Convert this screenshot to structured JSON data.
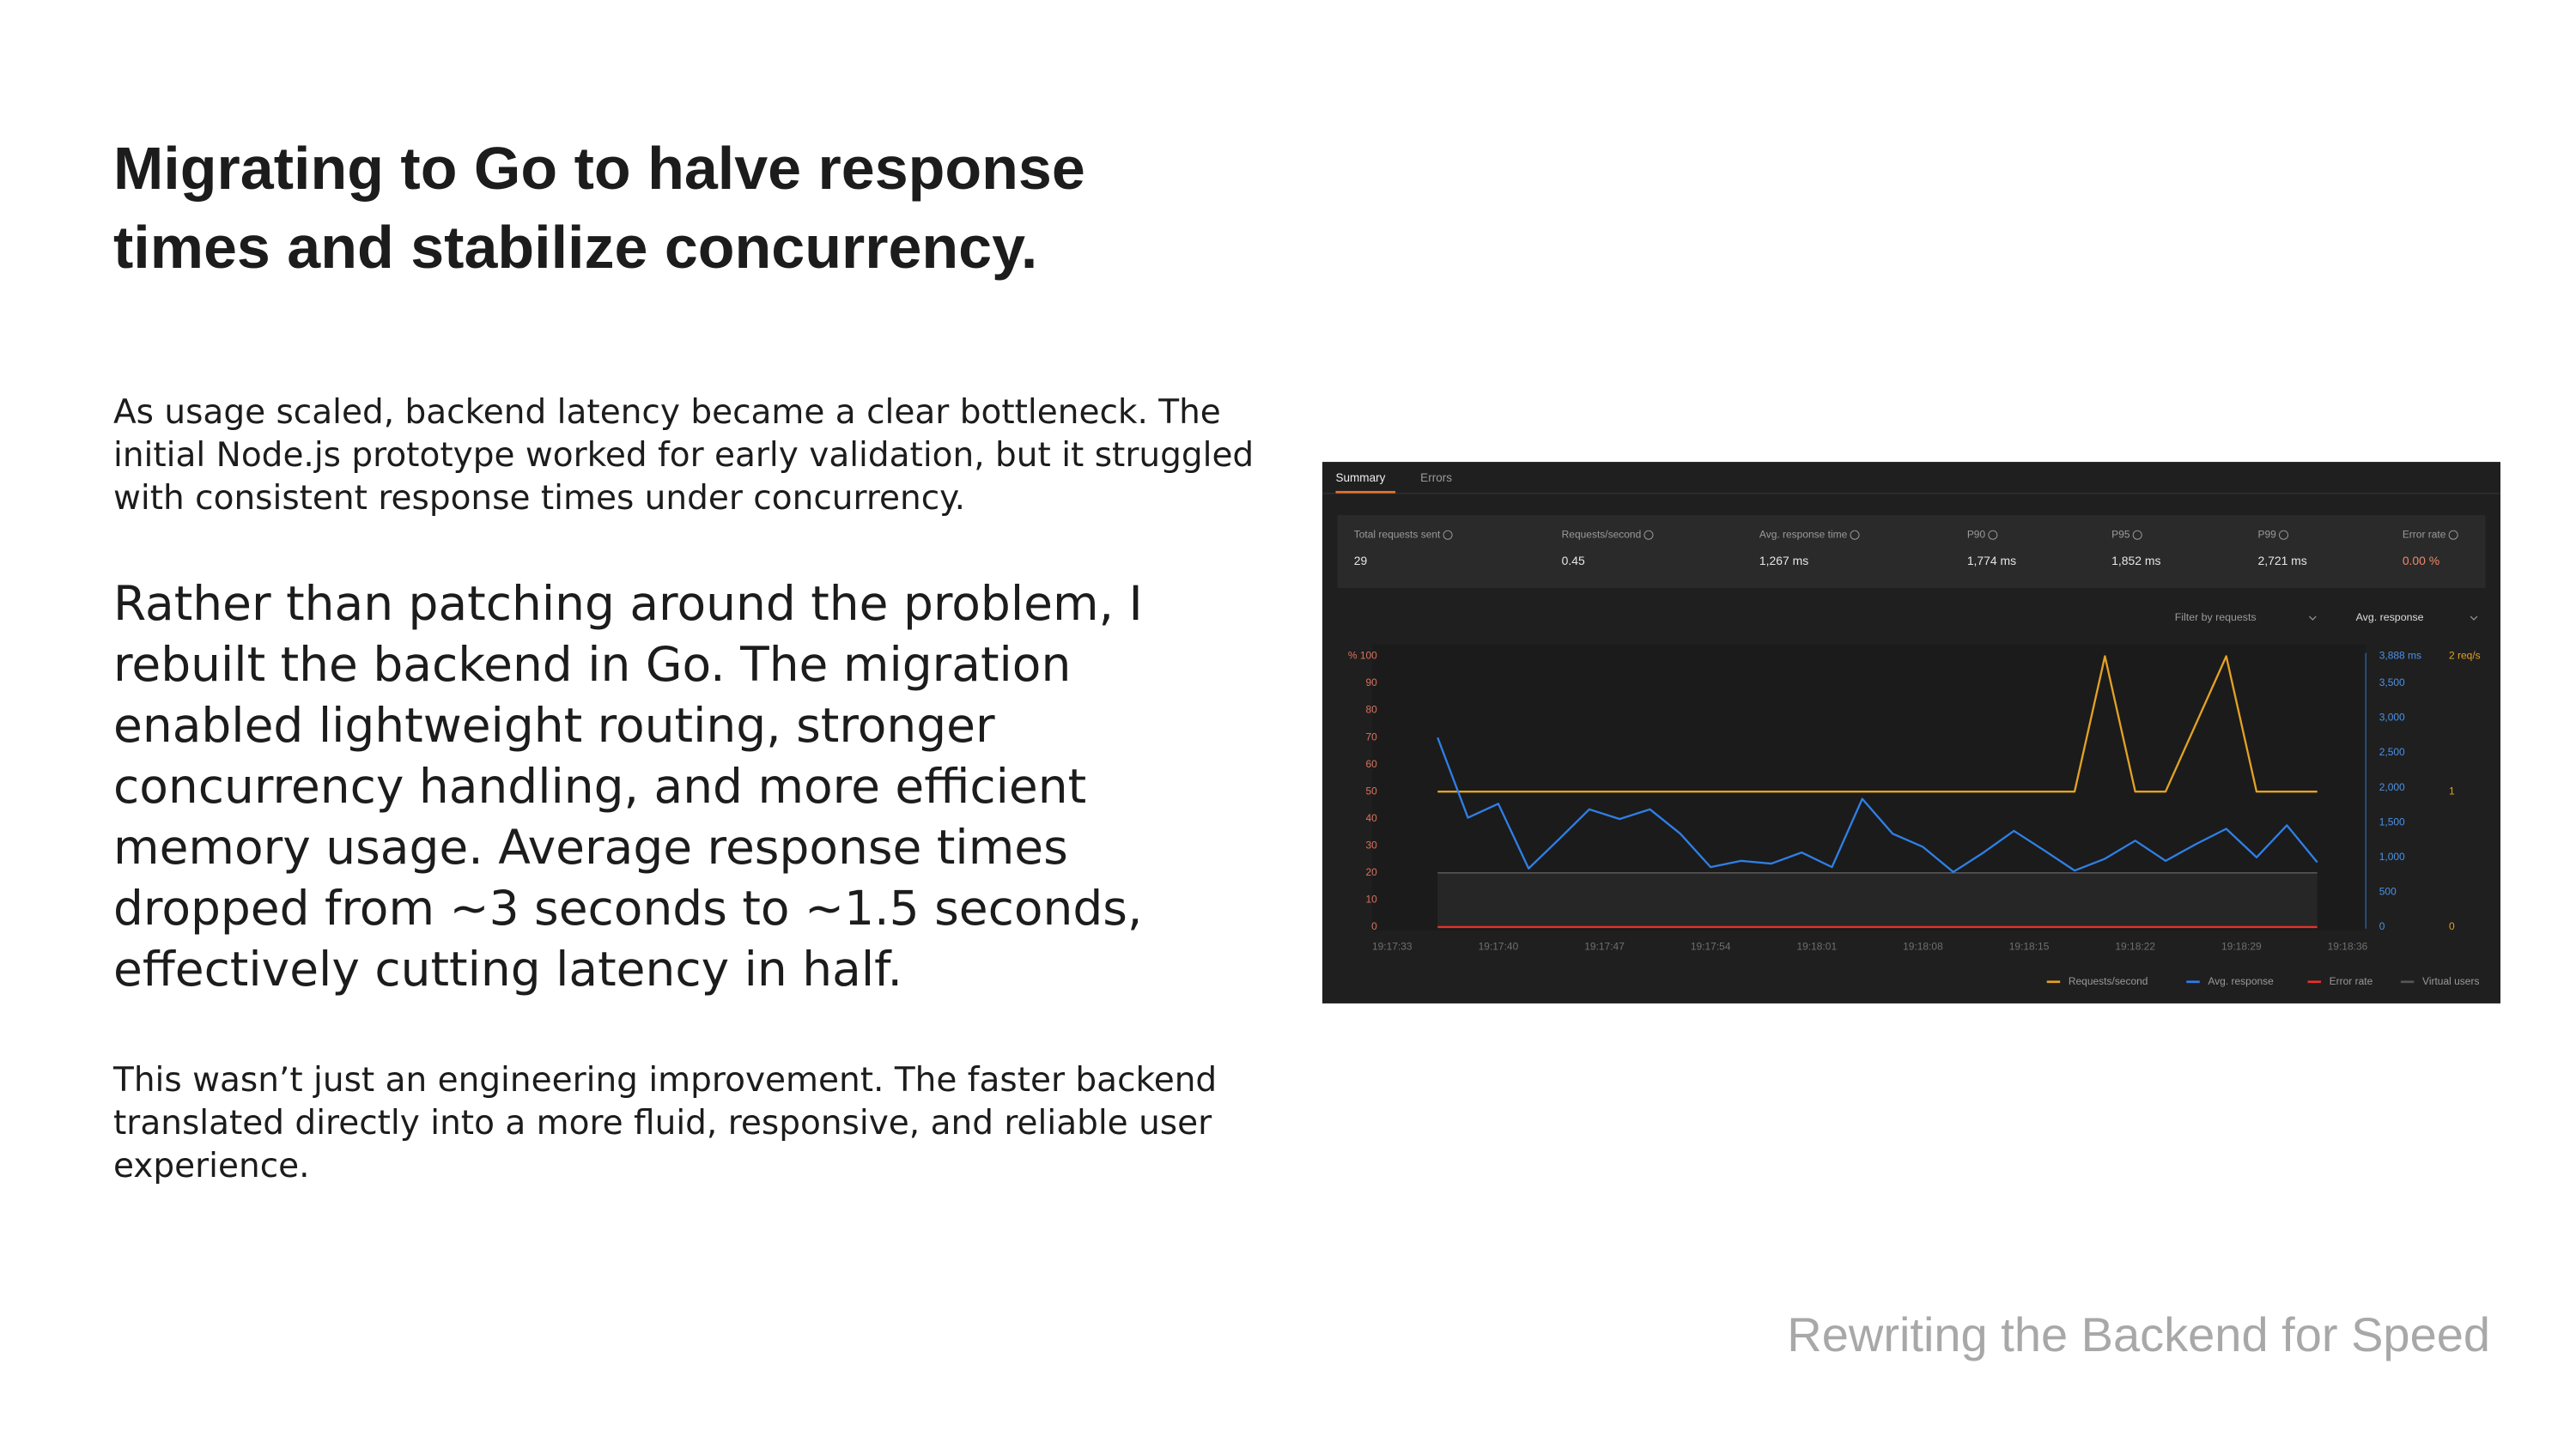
{
  "slide": {
    "title": "Migrating to Go to halve response times and stabilize concurrency.",
    "paragraphs": [
      "As usage scaled, backend latency became a clear bottleneck. The initial Node.js prototype worked for early validation, but it struggled with consistent response times under concurrency.",
      "Rather than patching around the problem, I rebuilt the backend in Go. The migration enabled lightweight routing, stronger concurrency handling, and more efficient memory usage. Average response times dropped from ~3 seconds to ~1.5 seconds, effectively cutting latency in half.",
      "This wasn’t just an engineering improvement. The faster backend translated directly into a more fluid, responsive, and reliable user experience."
    ],
    "footer": "Rewriting the Backend for Speed"
  },
  "dashboard": {
    "tabs": [
      "Summary",
      "Errors"
    ],
    "stats": [
      {
        "label": "Total requests sent",
        "value": "29"
      },
      {
        "label": "Requests/second",
        "value": "0.45"
      },
      {
        "label": "Avg. response time",
        "value": "1,267 ms"
      },
      {
        "label": "P90",
        "value": "1,774 ms"
      },
      {
        "label": "P95",
        "value": "1,852 ms"
      },
      {
        "label": "P99",
        "value": "2,721 ms"
      },
      {
        "label": "Error rate",
        "value": "0.00 %"
      }
    ],
    "filters": [
      "Filter by requests",
      "Avg. response"
    ]
  },
  "chart_data": {
    "type": "line",
    "x": [
      "19:17:36",
      "19:17:38",
      "19:17:40",
      "19:17:42",
      "19:17:44",
      "19:17:46",
      "19:17:48",
      "19:17:50",
      "19:17:52",
      "19:17:54",
      "19:17:56",
      "19:17:58",
      "19:18:00",
      "19:18:02",
      "19:18:04",
      "19:18:06",
      "19:18:08",
      "19:18:10",
      "19:18:12",
      "19:18:14",
      "19:18:16",
      "19:18:18",
      "19:18:20",
      "19:18:22",
      "19:18:24",
      "19:18:26",
      "19:18:28",
      "19:18:30",
      "19:18:32",
      "19:18:34"
    ],
    "xlim": [
      "19:17:33",
      "19:18:36"
    ],
    "xticks": [
      "19:17:33",
      "19:17:40",
      "19:17:47",
      "19:17:54",
      "19:18:01",
      "19:18:08",
      "19:18:15",
      "19:18:22",
      "19:18:29",
      "19:18:36"
    ],
    "ylim": [
      0,
      100
    ],
    "yticks": [
      0,
      10,
      20,
      30,
      40,
      50,
      60,
      70,
      80,
      90,
      {
        "value": 100,
        "label": "% 100"
      }
    ],
    "y2lim": [
      0,
      3888
    ],
    "y2ticks": [
      0,
      500,
      {
        "value": 1000,
        "label": "1,000"
      },
      {
        "value": 1500,
        "label": "1,500"
      },
      {
        "value": 2000,
        "label": "2,000"
      },
      {
        "value": 2500,
        "label": "2,500"
      },
      {
        "value": 3000,
        "label": "3,000"
      },
      {
        "value": 3500,
        "label": "3,500"
      },
      {
        "value": 3888,
        "label": "3,888 ms"
      }
    ],
    "y3lim": [
      0,
      2
    ],
    "y3ticks": [
      0,
      1,
      {
        "value": 2,
        "label": "2 req/s"
      }
    ],
    "legend": "bottom-right",
    "series": [
      {
        "name": "Requests/second",
        "color": "#e3a224",
        "axis": "y3",
        "values": [
          1,
          1,
          1,
          1,
          1,
          1,
          1,
          1,
          1,
          1,
          1,
          1,
          1,
          1,
          1,
          1,
          1,
          1,
          1,
          1,
          1,
          1,
          2,
          1,
          1,
          1.5,
          2,
          1,
          1,
          1
        ]
      },
      {
        "name": "Avg. response",
        "color": "#2f7fe6",
        "axis": "y2",
        "values": [
          2720,
          1570,
          1770,
          840,
          1260,
          1690,
          1550,
          1690,
          1340,
          860,
          950,
          910,
          1070,
          860,
          1840,
          1340,
          1150,
          790,
          1070,
          1380,
          1100,
          810,
          980,
          1240,
          950,
          1190,
          1410,
          1000,
          1460,
          930
        ]
      },
      {
        "name": "Error rate",
        "color": "#e5322c",
        "values": [
          0,
          0,
          0,
          0,
          0,
          0,
          0,
          0,
          0,
          0,
          0,
          0,
          0,
          0,
          0,
          0,
          0,
          0,
          0,
          0,
          0,
          0,
          0,
          0,
          0,
          0,
          0,
          0,
          0,
          0
        ]
      },
      {
        "name": "Virtual users",
        "color": "#555555",
        "values": [
          20,
          20,
          20,
          20,
          20,
          20,
          20,
          20,
          20,
          20,
          20,
          20,
          20,
          20,
          20,
          20,
          20,
          20,
          20,
          20,
          20,
          20,
          20,
          20,
          20,
          20,
          20,
          20,
          20,
          20
        ]
      }
    ]
  }
}
